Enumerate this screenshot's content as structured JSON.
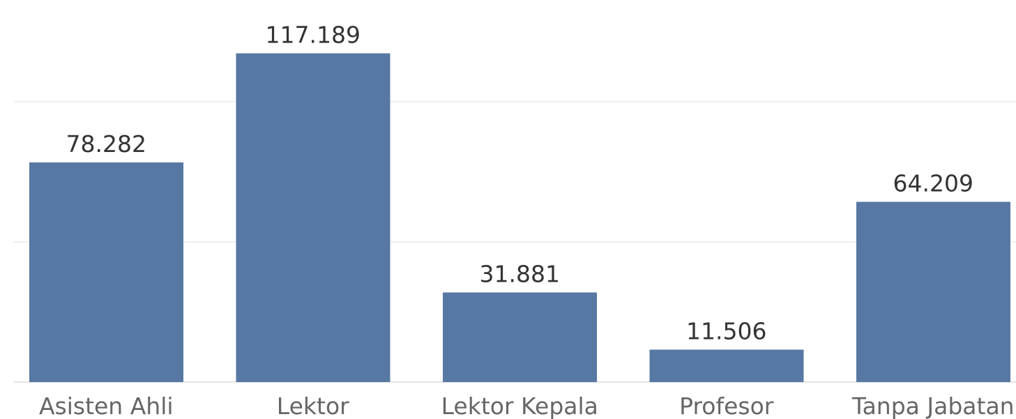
{
  "chart_data": {
    "type": "bar",
    "categories": [
      "Asisten Ahli",
      "Lektor",
      "Lektor Kepala",
      "Profesor",
      "Tanpa Jabatan"
    ],
    "values": [
      78282,
      117189,
      31881,
      11506,
      64209
    ],
    "value_labels": [
      "78.282",
      "117.189",
      "31.881",
      "11.506",
      "64.209"
    ],
    "title": "",
    "xlabel": "",
    "ylabel": "",
    "ylim": [
      0,
      130000
    ],
    "gridlines": [
      0,
      50000,
      100000
    ],
    "grid": true,
    "legend": "none",
    "colors": {
      "bar": "#5778a2",
      "grid": "#ededed",
      "value_label": "#333333",
      "category_label": "#666666"
    }
  }
}
